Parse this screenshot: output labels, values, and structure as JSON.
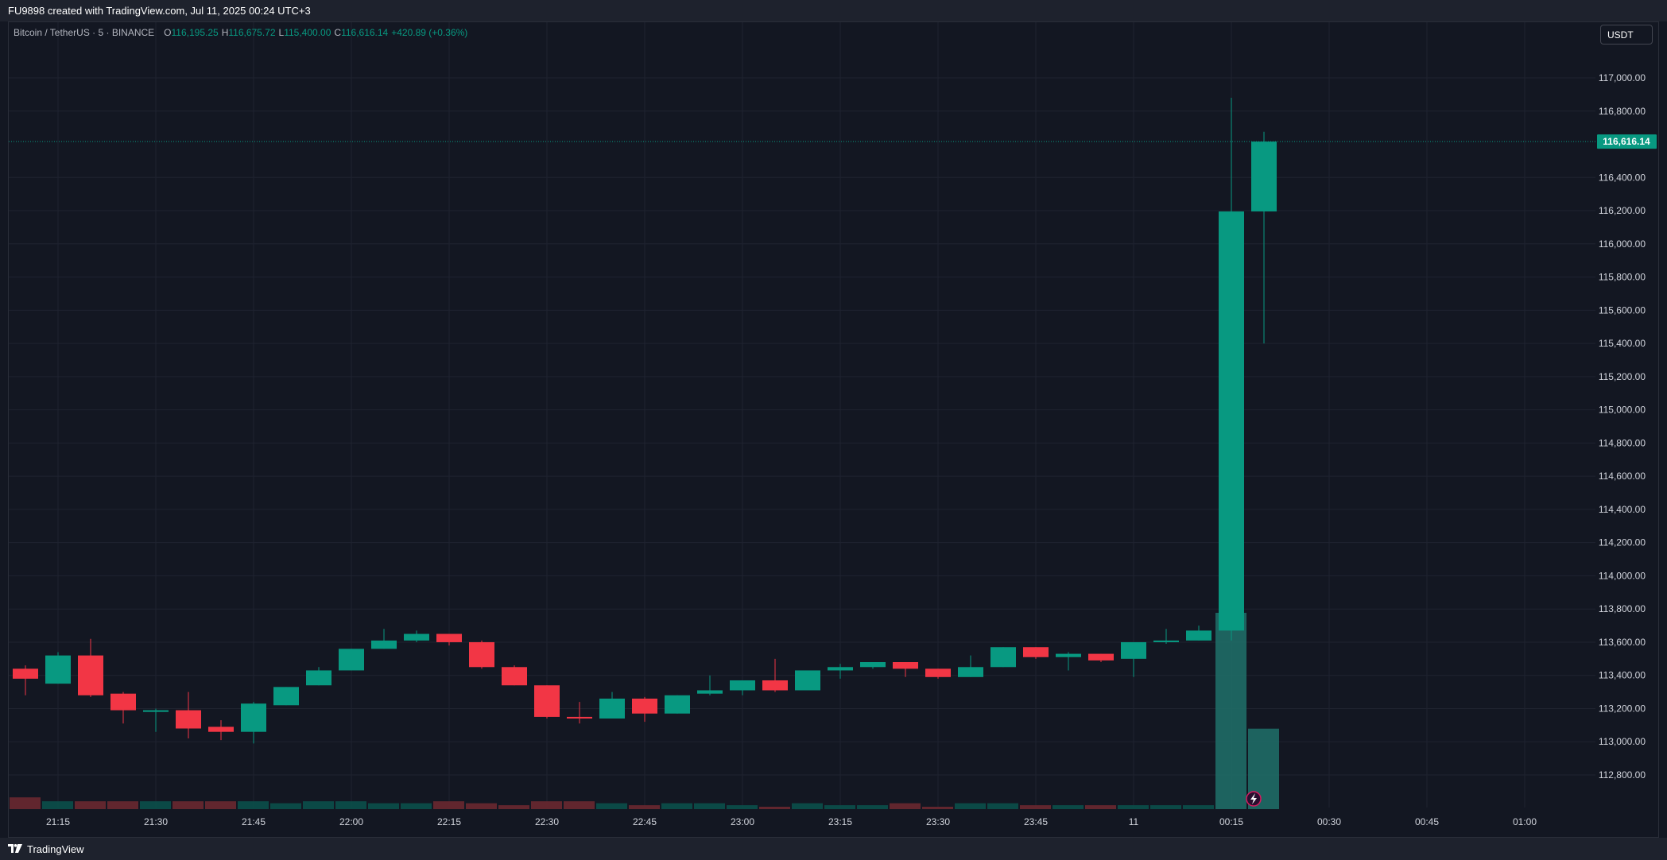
{
  "header": {
    "text": "FU9898 created with TradingView.com, Jul 11, 2025 00:24 UTC+3"
  },
  "legend": {
    "symbol": "Bitcoin / TetherUS · 5 · BINANCE",
    "o_label": "O",
    "o_value": "116,195.25",
    "h_label": "H",
    "h_value": "116,675.72",
    "l_label": "L",
    "l_value": "115,400.00",
    "c_label": "C",
    "c_value": "116,616.14",
    "change": "+420.89 (+0.36%)"
  },
  "currency_button": "USDT",
  "footer": {
    "logo_icon": "tradingview-logo-icon",
    "brand": "TradingView"
  },
  "colors": {
    "background": "#131722",
    "up": "#089981",
    "down": "#f23645",
    "grid": "#1f2330",
    "axis_text": "#d1d4dc",
    "volume_up": "#0b4f4a",
    "volume_down": "#6a2830",
    "volume_up_hl": "#1f6b66"
  },
  "chart_data": {
    "type": "candlestick",
    "symbol": "BTC/USDT",
    "interval": "5",
    "last_price": 116616.14,
    "last_price_label": "116,616.14",
    "ylim": [
      112600,
      117250
    ],
    "y_ticks": [
      117000,
      116800,
      116400,
      116200,
      116000,
      115800,
      115600,
      115400,
      115200,
      115000,
      114800,
      114600,
      114400,
      114200,
      114000,
      113800,
      113600,
      113400,
      113200,
      113000,
      112800
    ],
    "y_tick_labels": [
      "117,000.00",
      "116,800.00",
      "116,400.00",
      "116,200.00",
      "116,000.00",
      "115,800.00",
      "115,600.00",
      "115,400.00",
      "115,200.00",
      "115,000.00",
      "114,800.00",
      "114,600.00",
      "114,400.00",
      "114,200.00",
      "114,000.00",
      "113,800.00",
      "113,600.00",
      "113,400.00",
      "113,200.00",
      "113,000.00",
      "112,800.00"
    ],
    "x_ticks": [
      "21:15",
      "21:30",
      "21:45",
      "22:00",
      "22:15",
      "22:30",
      "22:45",
      "23:00",
      "23:15",
      "23:30",
      "23:45",
      "11",
      "00:15",
      "00:30",
      "00:45",
      "01:00"
    ],
    "candles": [
      {
        "o": 113440,
        "h": 113460,
        "l": 113280,
        "c": 113380
      },
      {
        "o": 113350,
        "h": 113540,
        "l": 113350,
        "c": 113520
      },
      {
        "o": 113520,
        "h": 113620,
        "l": 113270,
        "c": 113280
      },
      {
        "o": 113290,
        "h": 113300,
        "l": 113110,
        "c": 113190
      },
      {
        "o": 113180,
        "h": 113200,
        "l": 113060,
        "c": 113190
      },
      {
        "o": 113190,
        "h": 113300,
        "l": 113020,
        "c": 113080
      },
      {
        "o": 113090,
        "h": 113130,
        "l": 113010,
        "c": 113060
      },
      {
        "o": 113060,
        "h": 113240,
        "l": 112990,
        "c": 113230
      },
      {
        "o": 113220,
        "h": 113330,
        "l": 113220,
        "c": 113330
      },
      {
        "o": 113340,
        "h": 113450,
        "l": 113340,
        "c": 113430
      },
      {
        "o": 113430,
        "h": 113560,
        "l": 113430,
        "c": 113560
      },
      {
        "o": 113560,
        "h": 113680,
        "l": 113560,
        "c": 113610
      },
      {
        "o": 113610,
        "h": 113670,
        "l": 113600,
        "c": 113650
      },
      {
        "o": 113650,
        "h": 113650,
        "l": 113580,
        "c": 113600
      },
      {
        "o": 113600,
        "h": 113610,
        "l": 113440,
        "c": 113450
      },
      {
        "o": 113450,
        "h": 113460,
        "l": 113340,
        "c": 113340
      },
      {
        "o": 113340,
        "h": 113340,
        "l": 113140,
        "c": 113150
      },
      {
        "o": 113150,
        "h": 113240,
        "l": 113110,
        "c": 113140
      },
      {
        "o": 113140,
        "h": 113300,
        "l": 113140,
        "c": 113260
      },
      {
        "o": 113260,
        "h": 113270,
        "l": 113120,
        "c": 113170
      },
      {
        "o": 113170,
        "h": 113280,
        "l": 113170,
        "c": 113280
      },
      {
        "o": 113290,
        "h": 113400,
        "l": 113280,
        "c": 113310
      },
      {
        "o": 113310,
        "h": 113370,
        "l": 113280,
        "c": 113370
      },
      {
        "o": 113370,
        "h": 113500,
        "l": 113300,
        "c": 113310
      },
      {
        "o": 113310,
        "h": 113430,
        "l": 113310,
        "c": 113430
      },
      {
        "o": 113430,
        "h": 113470,
        "l": 113380,
        "c": 113450
      },
      {
        "o": 113450,
        "h": 113480,
        "l": 113440,
        "c": 113480
      },
      {
        "o": 113480,
        "h": 113480,
        "l": 113390,
        "c": 113440
      },
      {
        "o": 113440,
        "h": 113440,
        "l": 113380,
        "c": 113390
      },
      {
        "o": 113390,
        "h": 113520,
        "l": 113390,
        "c": 113450
      },
      {
        "o": 113450,
        "h": 113570,
        "l": 113450,
        "c": 113570
      },
      {
        "o": 113570,
        "h": 113570,
        "l": 113500,
        "c": 113510
      },
      {
        "o": 113510,
        "h": 113540,
        "l": 113430,
        "c": 113530
      },
      {
        "o": 113530,
        "h": 113530,
        "l": 113480,
        "c": 113490
      },
      {
        "o": 113500,
        "h": 113600,
        "l": 113390,
        "c": 113600
      },
      {
        "o": 113600,
        "h": 113680,
        "l": 113590,
        "c": 113610
      },
      {
        "o": 113610,
        "h": 113700,
        "l": 113610,
        "c": 113670
      },
      {
        "o": 113670,
        "h": 116880,
        "l": 113610,
        "c": 116195.25
      },
      {
        "o": 116195.25,
        "h": 116675.72,
        "l": 115400,
        "c": 116616.14
      }
    ],
    "volume": [
      0.06,
      0.04,
      0.04,
      0.04,
      0.04,
      0.04,
      0.04,
      0.04,
      0.03,
      0.04,
      0.04,
      0.03,
      0.03,
      0.04,
      0.03,
      0.02,
      0.04,
      0.04,
      0.03,
      0.02,
      0.03,
      0.03,
      0.02,
      0.01,
      0.03,
      0.02,
      0.02,
      0.03,
      0.01,
      0.03,
      0.03,
      0.02,
      0.02,
      0.02,
      0.02,
      0.02,
      0.02,
      1.0,
      0.41
    ]
  }
}
